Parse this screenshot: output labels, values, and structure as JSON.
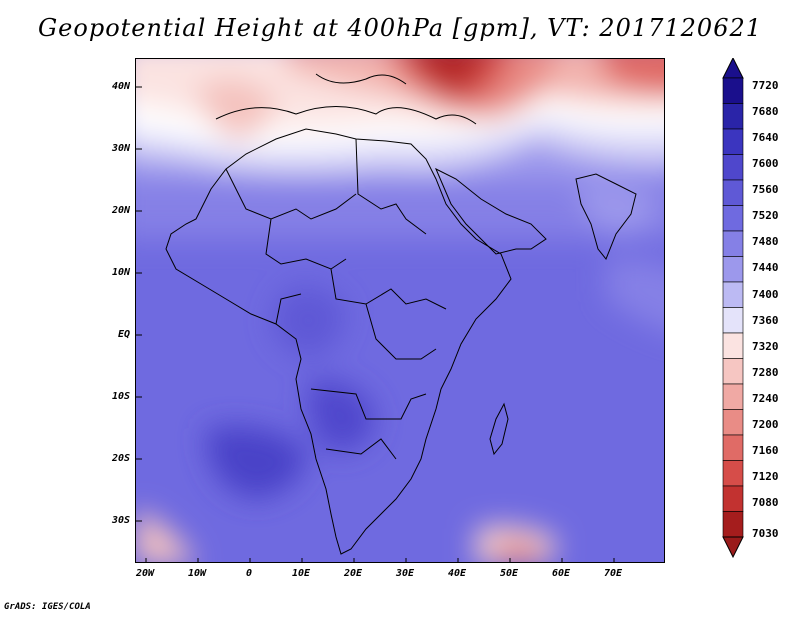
{
  "title": "Geopotential Height at 400hPa [gpm], VT: 2017120621",
  "footer": "GrADS: IGES/COLA",
  "map": {
    "variable": "Geopotential Height",
    "level": "400hPa",
    "units": "gpm",
    "valid_time": "2017120621",
    "lat_labels": [
      "40N",
      "30N",
      "20N",
      "10N",
      "EQ",
      "10S",
      "20S",
      "30S"
    ],
    "lon_labels": [
      "20W",
      "10W",
      "0",
      "10E",
      "20E",
      "30E",
      "40E",
      "50E",
      "60E",
      "70E"
    ]
  },
  "colorbar": {
    "levels": [
      "7720",
      "7680",
      "7640",
      "7600",
      "7560",
      "7520",
      "7480",
      "7440",
      "7400",
      "7360",
      "7320",
      "7280",
      "7240",
      "7200",
      "7160",
      "7120",
      "7080",
      "7030"
    ],
    "colors": [
      "#1a0f8c",
      "#2a24a8",
      "#3b35bf",
      "#4f47cc",
      "#5f59d6",
      "#6f6ae0",
      "#8580e6",
      "#9c98ec",
      "#bcbaf3",
      "#e4e3fa",
      "#fbe3e1",
      "#f6c6c2",
      "#f0a9a4",
      "#e98c86",
      "#e06b66",
      "#d64d49",
      "#c23230",
      "#a51d1d"
    ],
    "top_color": "#1a0f8c",
    "bottom_color": "#9a1b1b"
  }
}
